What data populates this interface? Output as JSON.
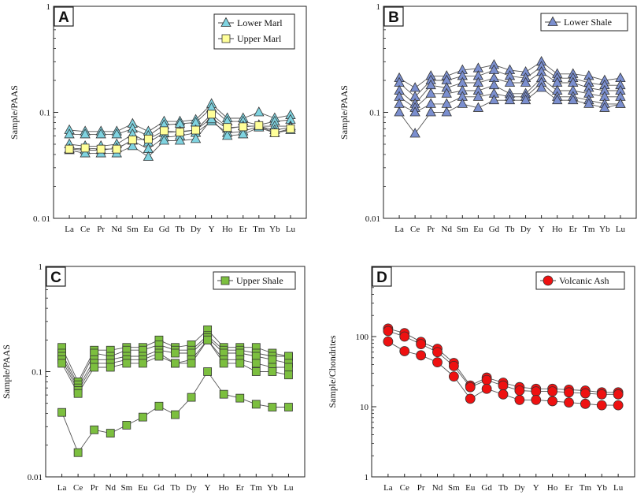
{
  "elements": [
    "La",
    "Ce",
    "Pr",
    "Nd",
    "Sm",
    "Eu",
    "Gd",
    "Tb",
    "Dy",
    "Y",
    "Ho",
    "Er",
    "Tm",
    "Yb",
    "Lu"
  ],
  "chart_data": [
    {
      "type": "line",
      "panel": "A",
      "ylabel": "Sample/PAAS",
      "scale": "log",
      "ylim": [
        0.01,
        1
      ],
      "yticks": [
        {
          "value": 0.01,
          "label": "0. 01"
        },
        {
          "value": 0.1,
          "label": "0.1"
        },
        {
          "value": 1,
          "label": "1"
        }
      ],
      "legend": [
        "Lower Marl",
        "Upper Marl"
      ],
      "legend_position": "top-right",
      "series": [
        {
          "name": "Lower Marl",
          "marker": "triangle",
          "color": "#7fd3e0",
          "values": [
            0.068,
            0.066,
            0.066,
            0.066,
            0.078,
            0.066,
            0.082,
            0.082,
            0.085,
            0.12,
            0.088,
            0.088,
            0.1,
            0.088,
            0.094
          ]
        },
        {
          "name": "Lower Marl",
          "marker": "triangle",
          "color": "#7fd3e0",
          "values": [
            0.062,
            0.062,
            0.062,
            0.062,
            0.07,
            0.06,
            0.076,
            0.078,
            0.08,
            0.11,
            0.082,
            0.082,
            0.076,
            0.082,
            0.085
          ]
        },
        {
          "name": "Lower Marl",
          "marker": "triangle",
          "color": "#7fd3e0",
          "values": [
            0.05,
            0.048,
            0.048,
            0.05,
            0.062,
            0.052,
            0.064,
            0.066,
            0.068,
            0.088,
            0.07,
            0.074,
            0.074,
            0.074,
            0.074
          ]
        },
        {
          "name": "Lower Marl",
          "marker": "triangle",
          "color": "#7fd3e0",
          "values": [
            0.045,
            0.044,
            0.044,
            0.046,
            0.054,
            0.045,
            0.058,
            0.06,
            0.064,
            0.082,
            0.064,
            0.066,
            0.074,
            0.068,
            0.072
          ]
        },
        {
          "name": "Lower Marl",
          "marker": "triangle",
          "color": "#7fd3e0",
          "values": [
            0.044,
            0.041,
            0.041,
            0.041,
            0.048,
            0.038,
            0.054,
            0.054,
            0.056,
            0.086,
            0.06,
            0.062,
            0.072,
            0.064,
            0.068
          ]
        },
        {
          "name": "Upper Marl",
          "marker": "square",
          "color": "#ffff99",
          "values": [
            0.045,
            0.046,
            0.045,
            0.045,
            0.055,
            0.056,
            0.067,
            0.065,
            0.068,
            0.096,
            0.072,
            0.073,
            0.075,
            0.064,
            0.07
          ]
        }
      ]
    },
    {
      "type": "line",
      "panel": "B",
      "ylabel": "Sample/PAAS",
      "scale": "log",
      "ylim": [
        0.01,
        1
      ],
      "yticks": [
        {
          "value": 0.01,
          "label": "0.01"
        },
        {
          "value": 0.1,
          "label": "0.1"
        },
        {
          "value": 1,
          "label": "1"
        }
      ],
      "legend": [
        "Lower Shale"
      ],
      "legend_position": "top-right",
      "series": [
        {
          "name": "Lower Shale",
          "marker": "triangle",
          "color": "#7b8fcf",
          "values": [
            0.21,
            0.17,
            0.22,
            0.22,
            0.25,
            0.26,
            0.28,
            0.25,
            0.24,
            0.3,
            0.23,
            0.23,
            0.22,
            0.2,
            0.21
          ]
        },
        {
          "name": "Lower Shale",
          "marker": "triangle",
          "color": "#7b8fcf",
          "values": [
            0.19,
            0.14,
            0.2,
            0.2,
            0.22,
            0.22,
            0.25,
            0.22,
            0.21,
            0.27,
            0.21,
            0.21,
            0.19,
            0.18,
            0.18
          ]
        },
        {
          "name": "Lower Shale",
          "marker": "triangle",
          "color": "#7b8fcf",
          "values": [
            0.16,
            0.12,
            0.18,
            0.17,
            0.19,
            0.19,
            0.21,
            0.19,
            0.19,
            0.24,
            0.19,
            0.19,
            0.17,
            0.16,
            0.16
          ]
        },
        {
          "name": "Lower Shale",
          "marker": "triangle",
          "color": "#7b8fcf",
          "values": [
            0.14,
            0.11,
            0.15,
            0.15,
            0.16,
            0.16,
            0.18,
            0.15,
            0.15,
            0.21,
            0.16,
            0.16,
            0.15,
            0.14,
            0.14
          ]
        },
        {
          "name": "Lower Shale",
          "marker": "triangle",
          "color": "#7b8fcf",
          "values": [
            0.12,
            0.1,
            0.12,
            0.12,
            0.14,
            0.14,
            0.15,
            0.14,
            0.14,
            0.19,
            0.14,
            0.14,
            0.13,
            0.12,
            0.12
          ]
        },
        {
          "name": "Lower Shale",
          "marker": "triangle",
          "color": "#7b8fcf",
          "values": [
            0.1,
            0.063,
            0.1,
            0.1,
            0.12,
            0.11,
            0.13,
            0.13,
            0.13,
            0.17,
            0.13,
            0.13,
            0.12,
            0.11,
            0.12
          ]
        }
      ]
    },
    {
      "type": "line",
      "panel": "C",
      "ylabel": "Sample/PAAS",
      "scale": "log",
      "ylim": [
        0.01,
        1
      ],
      "yticks": [
        {
          "value": 0.01,
          "label": "0.01"
        },
        {
          "value": 0.1,
          "label": "0.1"
        },
        {
          "value": 1,
          "label": "1"
        }
      ],
      "legend": [
        "Upper Shale"
      ],
      "legend_position": "top-right",
      "series": [
        {
          "name": "Upper Shale",
          "marker": "square",
          "color": "#7cbf3f",
          "values": [
            0.17,
            0.08,
            0.16,
            0.16,
            0.17,
            0.17,
            0.2,
            0.17,
            0.18,
            0.25,
            0.17,
            0.17,
            0.17,
            0.15,
            0.14
          ]
        },
        {
          "name": "Upper Shale",
          "marker": "square",
          "color": "#7cbf3f",
          "values": [
            0.15,
            0.075,
            0.15,
            0.14,
            0.16,
            0.16,
            0.18,
            0.16,
            0.16,
            0.22,
            0.16,
            0.16,
            0.15,
            0.14,
            0.14
          ]
        },
        {
          "name": "Upper Shale",
          "marker": "square",
          "color": "#7cbf3f",
          "values": [
            0.14,
            0.07,
            0.13,
            0.13,
            0.14,
            0.14,
            0.16,
            0.15,
            0.15,
            0.21,
            0.15,
            0.15,
            0.14,
            0.13,
            0.12
          ]
        },
        {
          "name": "Upper Shale",
          "marker": "square",
          "color": "#7cbf3f",
          "values": [
            0.13,
            0.066,
            0.12,
            0.12,
            0.13,
            0.13,
            0.15,
            0.12,
            0.13,
            0.2,
            0.13,
            0.13,
            0.12,
            0.11,
            0.11
          ]
        },
        {
          "name": "Upper Shale",
          "marker": "square",
          "color": "#7cbf3f",
          "values": [
            0.12,
            0.062,
            0.11,
            0.11,
            0.12,
            0.12,
            0.14,
            0.12,
            0.12,
            0.2,
            0.12,
            0.12,
            0.1,
            0.1,
            0.093
          ]
        },
        {
          "name": "Upper Shale",
          "marker": "square",
          "color": "#7cbf3f",
          "values": [
            0.041,
            0.017,
            0.028,
            0.026,
            0.031,
            0.037,
            0.047,
            0.039,
            0.057,
            0.1,
            0.061,
            0.056,
            0.049,
            0.046,
            0.046
          ]
        }
      ]
    },
    {
      "type": "line",
      "panel": "D",
      "ylabel": "Sample/Chondrites",
      "scale": "log",
      "ylim": [
        1,
        1000
      ],
      "yticks": [
        {
          "value": 1,
          "label": "1"
        },
        {
          "value": 10,
          "label": "10"
        },
        {
          "value": 100,
          "label": "100"
        }
      ],
      "legend": [
        "Volcanic Ash"
      ],
      "legend_position": "top-right",
      "series": [
        {
          "name": "Volcanic Ash",
          "marker": "circle",
          "color": "#ee1111",
          "values": [
            130,
            112,
            84,
            67,
            42,
            20,
            26,
            22,
            19,
            18,
            18,
            17.5,
            17,
            16,
            16
          ]
        },
        {
          "name": "Volcanic Ash",
          "marker": "circle",
          "color": "#ee1111",
          "values": [
            120,
            100,
            78,
            60,
            38,
            19,
            24,
            20,
            17,
            16.5,
            16.5,
            16,
            15.5,
            15,
            15
          ]
        },
        {
          "name": "Volcanic Ash",
          "marker": "circle",
          "color": "#ee1111",
          "values": [
            85,
            62,
            54,
            43,
            27,
            13,
            18,
            15,
            12.5,
            12.5,
            12,
            11.5,
            11,
            10.5,
            10.5
          ]
        }
      ]
    }
  ]
}
